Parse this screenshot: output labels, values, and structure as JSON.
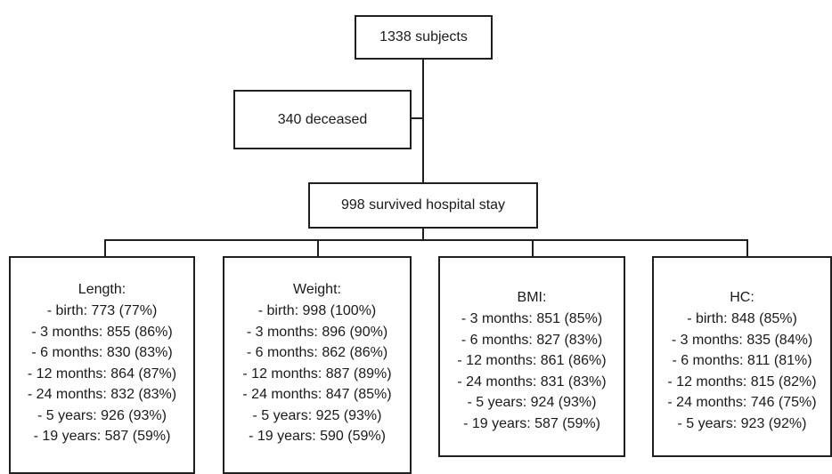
{
  "top": {
    "subjects": "1338 subjects"
  },
  "side": {
    "deceased": "340 deceased"
  },
  "middle": {
    "survived": "998 survived hospital stay"
  },
  "groups": [
    {
      "title": "Length:",
      "items": [
        "- birth: 773 (77%)",
        "- 3 months: 855 (86%)",
        "- 6 months: 830 (83%)",
        "- 12 months: 864 (87%)",
        "- 24 months: 832 (83%)",
        "- 5 years: 926 (93%)",
        "- 19 years: 587 (59%)"
      ]
    },
    {
      "title": "Weight:",
      "items": [
        "- birth: 998 (100%)",
        "- 3 months: 896 (90%)",
        "- 6 months: 862 (86%)",
        "- 12 months: 887 (89%)",
        "- 24 months: 847 (85%)",
        "- 5 years: 925 (93%)",
        "- 19 years: 590 (59%)"
      ]
    },
    {
      "title": "BMI:",
      "items": [
        "- 3 months: 851 (85%)",
        "- 6 months: 827 (83%)",
        "- 12 months: 861 (86%)",
        "- 24 months: 831 (83%)",
        "- 5 years: 924 (93%)",
        "- 19 years: 587 (59%)"
      ]
    },
    {
      "title": "HC:",
      "items": [
        "- birth: 848 (85%)",
        "- 3 months: 835 (84%)",
        "- 6 months: 811 (81%)",
        "- 12 months: 815 (82%)",
        "- 24 months: 746 (75%)",
        "- 5 years: 923 (92%)"
      ]
    }
  ]
}
